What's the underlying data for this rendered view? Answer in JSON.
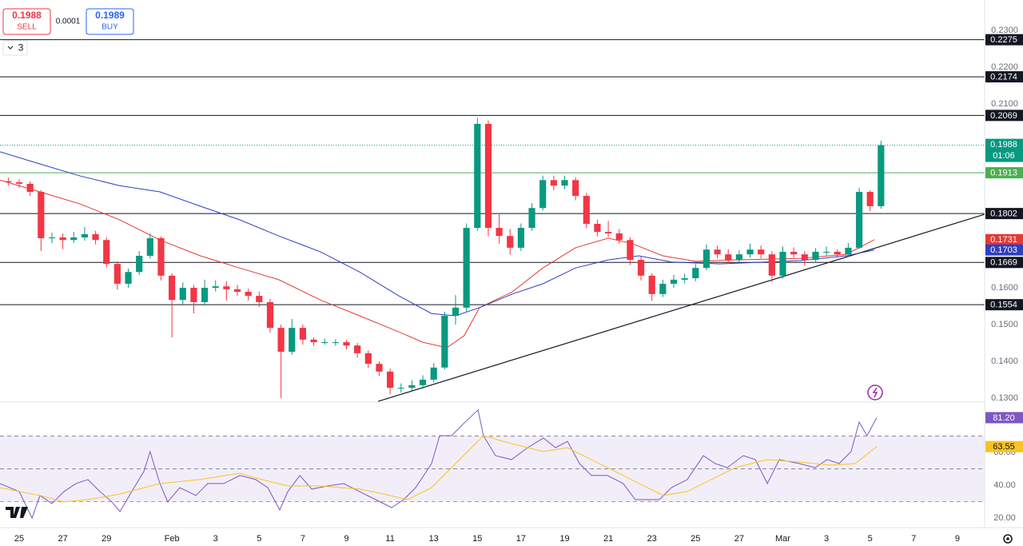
{
  "header": {
    "sell_price": "0.1988",
    "sell_label": "SELL",
    "spread": "0.0001",
    "buy_price": "0.1989",
    "buy_label": "BUY",
    "indicator_count": "3"
  },
  "chart_data": [
    {
      "type": "candlestick",
      "up_color": "#089981",
      "down_color": "#f23645",
      "grid": false,
      "xlim": [
        -0.88,
        44.25
      ],
      "ylim": [
        0.1289,
        0.2383
      ],
      "xticks": [
        {
          "value": 0,
          "label": "25"
        },
        {
          "value": 2,
          "label": "27"
        },
        {
          "value": 4,
          "label": "29"
        },
        {
          "value": 7,
          "label": "Feb"
        },
        {
          "value": 9,
          "label": "3"
        },
        {
          "value": 11,
          "label": "5"
        },
        {
          "value": 13,
          "label": "7"
        },
        {
          "value": 15,
          "label": "9"
        },
        {
          "value": 17,
          "label": "11"
        },
        {
          "value": 19,
          "label": "13"
        },
        {
          "value": 21,
          "label": "15"
        },
        {
          "value": 23,
          "label": "17"
        },
        {
          "value": 25,
          "label": "19"
        },
        {
          "value": 27,
          "label": "21"
        },
        {
          "value": 29,
          "label": "23"
        },
        {
          "value": 31,
          "label": "25"
        },
        {
          "value": 33,
          "label": "27"
        },
        {
          "value": 35,
          "label": "Mar"
        },
        {
          "value": 37,
          "label": "3"
        },
        {
          "value": 39,
          "label": "5"
        },
        {
          "value": 41,
          "label": "7"
        },
        {
          "value": 43,
          "label": "9"
        }
      ],
      "yticks": [
        {
          "value": 0.23,
          "label": "0.2300"
        },
        {
          "value": 0.22,
          "label": "0.2200"
        },
        {
          "value": 0.21,
          "label": "0.2100"
        },
        {
          "value": 0.16,
          "label": "0.1600"
        },
        {
          "value": 0.15,
          "label": "0.1500"
        },
        {
          "value": 0.14,
          "label": "0.1400"
        },
        {
          "value": 0.13,
          "label": "0.1300"
        }
      ],
      "x": [
        -0.5,
        0,
        0.5,
        1,
        1.5,
        2,
        2.5,
        3,
        3.5,
        4,
        4.5,
        5,
        5.5,
        6,
        6.5,
        7,
        7.5,
        8,
        8.5,
        9,
        9.5,
        10,
        10.5,
        11,
        11.5,
        12,
        12.5,
        13,
        13.5,
        14,
        14.5,
        15,
        15.5,
        16,
        16.5,
        17,
        17.5,
        18,
        18.5,
        19,
        19.5,
        20,
        20.5,
        21,
        21.5,
        22,
        22.5,
        23,
        23.5,
        24,
        24.5,
        25,
        25.5,
        26,
        26.5,
        27,
        27.5,
        28,
        28.5,
        29,
        29.5,
        30,
        30.5,
        31,
        31.5,
        32,
        32.5,
        33,
        33.5,
        34,
        34.5,
        35,
        35.5,
        36,
        36.5,
        37,
        37.5,
        38,
        38.5,
        39,
        39.5
      ],
      "open": [
        0.189,
        0.1887,
        0.1883,
        0.1861,
        0.1735,
        0.1737,
        0.173,
        0.1737,
        0.1746,
        0.173,
        0.1665,
        0.1611,
        0.1643,
        0.1687,
        0.1735,
        0.1633,
        0.1567,
        0.16,
        0.1561,
        0.16,
        0.1604,
        0.1596,
        0.1589,
        0.1578,
        0.1561,
        0.1491,
        0.1426,
        0.1491,
        0.1459,
        0.1452,
        0.1452,
        0.1452,
        0.1443,
        0.1422,
        0.1393,
        0.1372,
        0.1328,
        0.1328,
        0.1335,
        0.135,
        0.1383,
        0.1524,
        0.1546,
        0.1763,
        0.2046,
        0.1763,
        0.1741,
        0.1709,
        0.1763,
        0.1817,
        0.1893,
        0.1878,
        0.1893,
        0.185,
        0.1774,
        0.1752,
        0.1748,
        0.173,
        0.1676,
        0.1633,
        0.1583,
        0.1611,
        0.1622,
        0.1626,
        0.1654,
        0.1704,
        0.1691,
        0.1676,
        0.1691,
        0.1704,
        0.1691,
        0.1633,
        0.1698,
        0.1691,
        0.1676,
        0.1698,
        0.1698,
        0.1691,
        0.1709,
        0.1861,
        0.1822
      ],
      "high": [
        0.19,
        0.1895,
        0.189,
        0.1866,
        0.175,
        0.1748,
        0.1752,
        0.1765,
        0.1755,
        0.1738,
        0.1672,
        0.1652,
        0.17,
        0.1748,
        0.174,
        0.164,
        0.1615,
        0.1608,
        0.1622,
        0.162,
        0.1618,
        0.1608,
        0.1598,
        0.159,
        0.157,
        0.15,
        0.1515,
        0.15,
        0.1465,
        0.1462,
        0.146,
        0.1458,
        0.145,
        0.143,
        0.14,
        0.138,
        0.134,
        0.1348,
        0.1362,
        0.1395,
        0.1535,
        0.158,
        0.1775,
        0.2063,
        0.2055,
        0.18,
        0.176,
        0.1775,
        0.183,
        0.1905,
        0.1905,
        0.1905,
        0.19,
        0.1858,
        0.1785,
        0.1782,
        0.176,
        0.1738,
        0.1685,
        0.164,
        0.1622,
        0.1635,
        0.1638,
        0.1665,
        0.1718,
        0.1715,
        0.1705,
        0.1702,
        0.172,
        0.1715,
        0.17,
        0.1712,
        0.171,
        0.17,
        0.1708,
        0.1712,
        0.1705,
        0.1722,
        0.1872,
        0.1865,
        0.2
      ],
      "low": [
        0.1878,
        0.1872,
        0.185,
        0.17,
        0.1722,
        0.1705,
        0.1722,
        0.1728,
        0.1718,
        0.1655,
        0.1595,
        0.16,
        0.1635,
        0.168,
        0.162,
        0.1465,
        0.1555,
        0.153,
        0.1552,
        0.159,
        0.1565,
        0.1578,
        0.1565,
        0.1548,
        0.1478,
        0.13,
        0.1418,
        0.1445,
        0.1442,
        0.1445,
        0.1442,
        0.1432,
        0.141,
        0.1382,
        0.136,
        0.131,
        0.1315,
        0.132,
        0.1325,
        0.1342,
        0.1378,
        0.15,
        0.1535,
        0.1755,
        0.174,
        0.172,
        0.169,
        0.17,
        0.1755,
        0.181,
        0.1865,
        0.1868,
        0.1838,
        0.1762,
        0.174,
        0.1738,
        0.172,
        0.1662,
        0.162,
        0.1565,
        0.1575,
        0.16,
        0.1612,
        0.1618,
        0.1648,
        0.168,
        0.1665,
        0.1668,
        0.1682,
        0.168,
        0.1615,
        0.1625,
        0.1682,
        0.166,
        0.1668,
        0.1688,
        0.1682,
        0.1685,
        0.1705,
        0.1808,
        0.1815
      ],
      "close": [
        0.1887,
        0.1883,
        0.1861,
        0.1735,
        0.1737,
        0.173,
        0.1737,
        0.1746,
        0.173,
        0.1665,
        0.1611,
        0.1643,
        0.1687,
        0.1735,
        0.1633,
        0.1567,
        0.16,
        0.1561,
        0.16,
        0.1604,
        0.1596,
        0.1589,
        0.1578,
        0.1561,
        0.1491,
        0.1426,
        0.1491,
        0.1459,
        0.1452,
        0.1452,
        0.1452,
        0.1443,
        0.1422,
        0.1393,
        0.1372,
        0.1328,
        0.1328,
        0.1335,
        0.135,
        0.1383,
        0.1524,
        0.1546,
        0.1763,
        0.2046,
        0.1763,
        0.1741,
        0.1709,
        0.1763,
        0.1817,
        0.1893,
        0.1878,
        0.1893,
        0.185,
        0.1774,
        0.1752,
        0.1748,
        0.173,
        0.1676,
        0.1633,
        0.1583,
        0.1611,
        0.1622,
        0.1626,
        0.1654,
        0.1704,
        0.1691,
        0.1676,
        0.1691,
        0.1704,
        0.1691,
        0.1633,
        0.1698,
        0.1691,
        0.1676,
        0.1698,
        0.1698,
        0.1691,
        0.1709,
        0.1861,
        0.1822,
        0.1988
      ],
      "countdown": "01:06",
      "lines": [
        {
          "color": "#e53935",
          "x": [
            -0.88,
            0.95,
            2.8,
            4.6,
            6.45,
            8.3,
            10.1,
            11.9,
            13.8,
            15.6,
            17.4,
            18.5,
            19.6,
            20.4,
            21.1,
            22.6,
            24,
            25.5,
            27,
            28.1,
            29.5,
            31,
            32.8,
            35.8,
            37.9,
            39.2
          ],
          "values": [
            0.1893,
            0.1861,
            0.1828,
            0.1785,
            0.173,
            0.1687,
            0.1654,
            0.1622,
            0.1567,
            0.1524,
            0.148,
            0.1452,
            0.1437,
            0.147,
            0.1546,
            0.1589,
            0.1654,
            0.1709,
            0.1735,
            0.172,
            0.1687,
            0.1672,
            0.1676,
            0.168,
            0.1691,
            0.1731
          ]
        },
        {
          "color": "#2f3fbf",
          "x": [
            -0.88,
            0.95,
            2.8,
            4.6,
            6.45,
            8.3,
            10.1,
            11.9,
            13.8,
            15.6,
            17.4,
            18.9,
            20,
            21.1,
            22.6,
            24,
            25.5,
            27,
            28.4,
            29.9,
            32.1,
            35.8,
            37.9,
            39.2
          ],
          "values": [
            0.197,
            0.1937,
            0.1904,
            0.1878,
            0.1861,
            0.1822,
            0.1785,
            0.1741,
            0.1698,
            0.1643,
            0.1578,
            0.153,
            0.1524,
            0.1546,
            0.1583,
            0.1611,
            0.1654,
            0.1676,
            0.1687,
            0.167,
            0.1665,
            0.1674,
            0.1687,
            0.1703
          ]
        }
      ],
      "trendlines": [
        {
          "color": "#131722",
          "x": [
            16.45,
            44.25
          ],
          "values": [
            0.1291,
            0.18
          ]
        }
      ],
      "levels": [
        {
          "value": 0.2275,
          "color": "#131722"
        },
        {
          "value": 0.2174,
          "color": "#131722"
        },
        {
          "value": 0.2069,
          "color": "#131722"
        },
        {
          "value": 0.1913,
          "color": "#4caf50"
        },
        {
          "value": 0.1802,
          "color": "#131722"
        },
        {
          "value": 0.1669,
          "color": "#131722"
        },
        {
          "value": 0.1554,
          "color": "#131722"
        }
      ]
    },
    {
      "type": "line",
      "ylim": [
        14.1,
        90.7
      ],
      "yticks": [
        {
          "value": 60,
          "label": "60.00"
        },
        {
          "value": 40,
          "label": "40.00"
        },
        {
          "value": 20,
          "label": "20.00"
        }
      ],
      "band": [
        30,
        70
      ],
      "midline": 50,
      "band_color": "#7e57c2",
      "series": [
        {
          "color": "#7e57c2",
          "current_label": "81.20",
          "x": [
            -0.88,
            0,
            0.59,
            0.95,
            1.5,
            2.05,
            2.6,
            3.15,
            3.7,
            4.25,
            4.62,
            5.16,
            5.71,
            6.0,
            6.45,
            6.81,
            7.36,
            8.1,
            8.64,
            9.38,
            10.11,
            10.84,
            11.39,
            11.94,
            12.31,
            12.86,
            13.41,
            14.14,
            14.87,
            15.6,
            16.34,
            17.07,
            17.62,
            18.17,
            18.9,
            19.27,
            19.82,
            20.37,
            21.03,
            21.28,
            21.83,
            22.56,
            23.3,
            24.03,
            24.58,
            25.13,
            25.68,
            26.23,
            26.96,
            27.69,
            28.24,
            28.79,
            29.34,
            29.89,
            30.62,
            31.36,
            31.9,
            32.45,
            33.19,
            33.74,
            34.29,
            34.84,
            35.75,
            36.48,
            37.03,
            37.58,
            38.13,
            38.5,
            38.86,
            39.3
          ],
          "values": [
            41.0,
            36.1,
            20.0,
            33.7,
            28.8,
            36.1,
            41.0,
            43.4,
            36.1,
            29.8,
            23.9,
            36.1,
            48.3,
            60.5,
            41.0,
            29.8,
            38.5,
            33.7,
            41.0,
            41.0,
            45.9,
            43.4,
            38.5,
            24.9,
            36.1,
            45.9,
            37.6,
            39.5,
            41.0,
            36.1,
            31.2,
            26.3,
            31.2,
            38.5,
            53.2,
            70.2,
            70.2,
            77.6,
            85.9,
            70.2,
            58.0,
            55.6,
            62.9,
            68.8,
            62.9,
            66.8,
            53.2,
            45.9,
            45.9,
            41.0,
            31.2,
            31.2,
            31.2,
            38.5,
            43.4,
            58.0,
            53.2,
            50.7,
            58.0,
            55.6,
            41.0,
            55.6,
            53.2,
            50.7,
            55.6,
            53.2,
            60.5,
            78.5,
            70.2,
            81.2
          ]
        },
        {
          "color": "#f7c325",
          "x": [
            -0.88,
            0.95,
            2.05,
            3.15,
            4.62,
            6.45,
            8.28,
            10.11,
            10.84,
            12.31,
            13.77,
            15.6,
            16.7,
            17.8,
            18.9,
            20,
            21.28,
            22.56,
            24.03,
            25.13,
            26.59,
            28.42,
            29.52,
            30.62,
            31.72,
            32.82,
            34.29,
            35.75,
            37.22,
            38.32,
            39.3
          ],
          "values": [
            38.5,
            33.7,
            29.8,
            31.2,
            34.6,
            41.0,
            43.4,
            47.3,
            44.4,
            39.5,
            39.5,
            37.6,
            34.6,
            31.2,
            38.5,
            53.2,
            70.2,
            65.4,
            60.5,
            62.9,
            53.2,
            41.0,
            33.7,
            36.1,
            43.4,
            50.7,
            55.6,
            54.1,
            52.2,
            53.2,
            63.55
          ]
        }
      ]
    }
  ]
}
